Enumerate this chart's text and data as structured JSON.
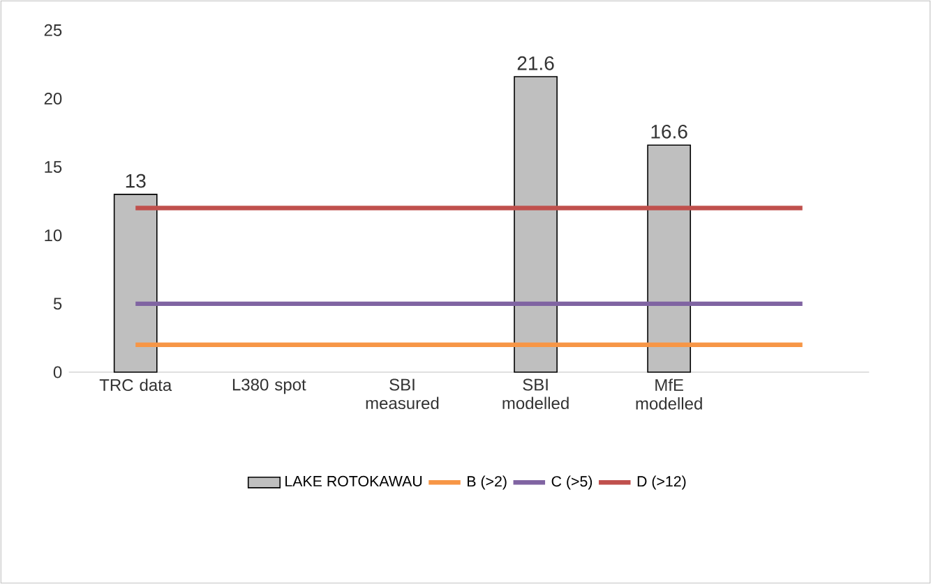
{
  "chart_data": {
    "type": "bar",
    "categories": [
      "TRC data",
      "L380 spot",
      "SBI measured",
      "SBI modelled",
      "MfE modelled",
      null
    ],
    "series": [
      {
        "name": "LAKE ROTOKAWAU",
        "color": "#bfbfbf",
        "values": [
          13,
          null,
          null,
          21.6,
          16.6,
          null
        ],
        "value_labels": [
          "13",
          null,
          null,
          "21.6",
          "16.6",
          null
        ]
      },
      {
        "name": "B (>2)",
        "type": "line",
        "color": "#f79646",
        "values": [
          2,
          2,
          2,
          2,
          2,
          2
        ]
      },
      {
        "name": "C (>5)",
        "type": "line",
        "color": "#8064a2",
        "values": [
          5,
          5,
          5,
          5,
          5,
          5
        ]
      },
      {
        "name": "D (>12)",
        "type": "line",
        "color": "#c0504d",
        "values": [
          12,
          12,
          12,
          12,
          12,
          12
        ]
      }
    ],
    "ylim": [
      0,
      25
    ],
    "yticks": [
      0,
      5,
      10,
      15,
      20,
      25
    ],
    "grid": false,
    "legend": "bottom"
  }
}
